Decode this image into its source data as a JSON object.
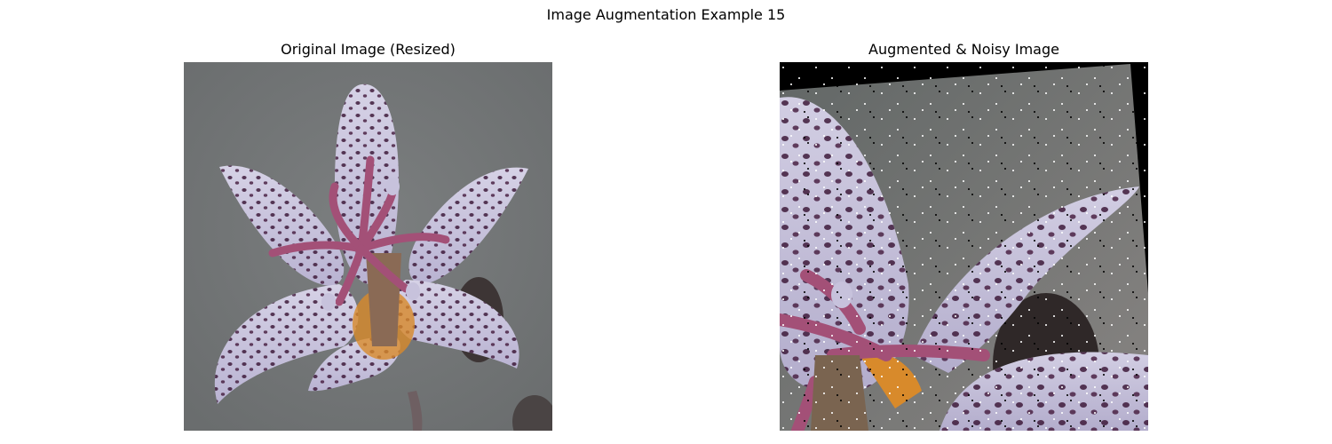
{
  "figure": {
    "suptitle": "Image Augmentation Example 15"
  },
  "panels": [
    {
      "title": "Original Image (Resized)",
      "image": "orchid-flower-photo"
    },
    {
      "title": "Augmented & Noisy Image",
      "image": "orchid-flower-rotated-zoomed-noisy"
    }
  ],
  "colors": {
    "background": "#ffffff",
    "photo_bg_gray": "#737677",
    "petal_lavender": "#cdc8de",
    "spot_purple": "#3e1a3a",
    "stamen_magenta": "#a35077",
    "center_orange": "#d88a2b",
    "rotation_fill": "#000000"
  }
}
